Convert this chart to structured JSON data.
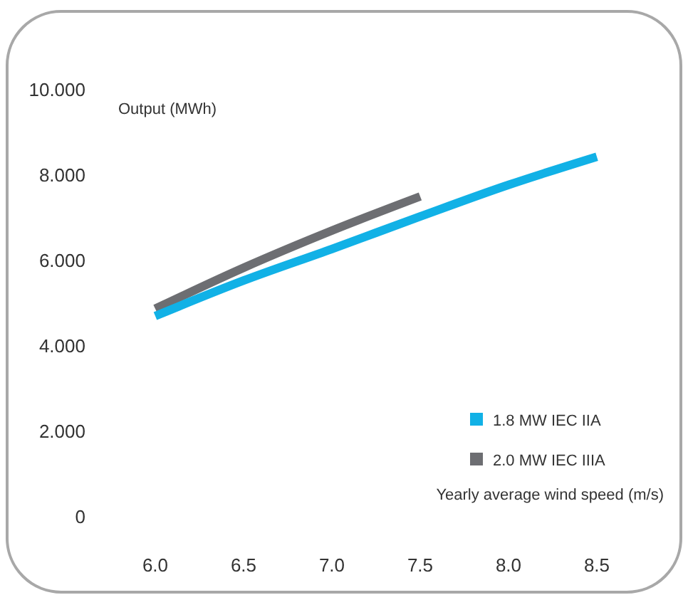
{
  "chart_data": {
    "type": "line",
    "ylabel": "Output (MWh)",
    "xlabel": "Yearly average wind speed (m/s)",
    "x": [
      6.0,
      6.5,
      7.0,
      7.5,
      8.0,
      8.5
    ],
    "xlim": [
      6,
      8.5
    ],
    "xticks": [
      {
        "value": 6,
        "label": "6.0"
      },
      {
        "value": 6.5,
        "label": "6.5"
      },
      {
        "value": 7,
        "label": "7.0"
      },
      {
        "value": 7.5,
        "label": "7.5"
      },
      {
        "value": 8,
        "label": "8.0"
      },
      {
        "value": 8.5,
        "label": "8.5"
      }
    ],
    "ylim": [
      0,
      10
    ],
    "yticks": [
      0,
      {
        "value": 2,
        "label": "2.000"
      },
      {
        "value": 4,
        "label": "4.000"
      },
      {
        "value": 6,
        "label": "6.000"
      },
      {
        "value": 8,
        "label": "8.000"
      },
      {
        "value": 10,
        "label": "10.000"
      }
    ],
    "legend": "bottom right",
    "marker": "none",
    "line_style": "solid",
    "series": [
      {
        "name": "1.8 MW IEC IIA",
        "color": "#11b1e6",
        "values": [
          4.7,
          5.53,
          6.27,
          7.03,
          7.77,
          8.43
        ]
      },
      {
        "name": "2.0 MW IEC IIIA",
        "color": "#6d6e72",
        "values": [
          4.87,
          5.83,
          6.7,
          7.5,
          null,
          null
        ]
      }
    ]
  }
}
